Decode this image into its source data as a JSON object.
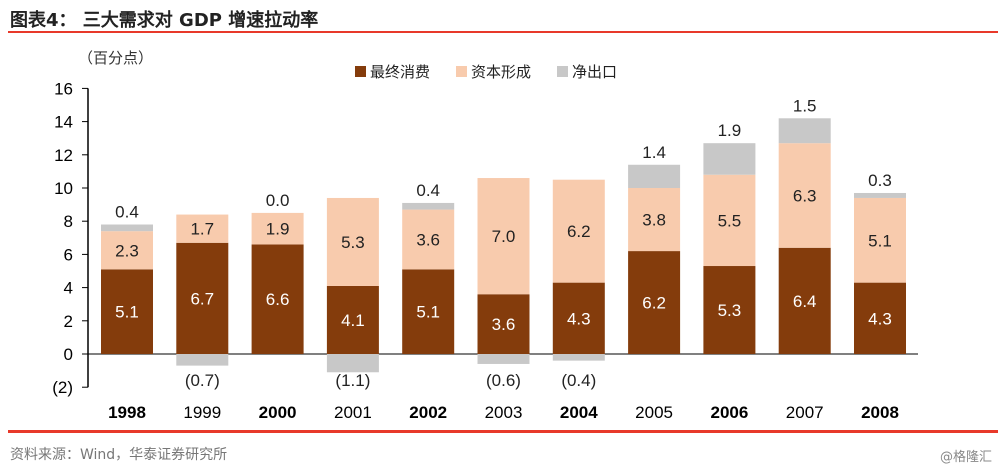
{
  "header": {
    "title": "图表4： 三大需求对 GDP 增速拉动率"
  },
  "footer": {
    "source": "资料来源：Wind，华泰证券研究所",
    "watermark": "@格隆汇"
  },
  "chart_data": {
    "type": "bar",
    "stacked": true,
    "ylabel": "（百分点）",
    "ylim": [
      -2,
      16
    ],
    "yticks": [
      -2,
      0,
      2,
      4,
      6,
      8,
      10,
      12,
      14,
      16
    ],
    "ytick_labels": [
      "(2)",
      "0",
      "2",
      "4",
      "6",
      "8",
      "10",
      "12",
      "14",
      "16"
    ],
    "legend_position": "top",
    "categories": [
      "1998",
      "1999",
      "2000",
      "2001",
      "2002",
      "2003",
      "2004",
      "2005",
      "2006",
      "2007",
      "2008"
    ],
    "series": [
      {
        "name": "最终消费",
        "color": "#843c0c",
        "values": [
          5.1,
          6.7,
          6.6,
          4.1,
          5.1,
          3.6,
          4.3,
          6.2,
          5.3,
          6.4,
          4.3
        ]
      },
      {
        "name": "资本形成",
        "color": "#f8cbad",
        "values": [
          2.3,
          1.7,
          1.9,
          5.3,
          3.6,
          7.0,
          6.2,
          3.8,
          5.5,
          6.3,
          5.1
        ]
      },
      {
        "name": "净出口",
        "color": "#c8c8c8",
        "values": [
          0.4,
          -0.7,
          0.0,
          -1.1,
          0.4,
          -0.6,
          -0.4,
          1.4,
          1.9,
          1.5,
          0.3
        ]
      }
    ]
  }
}
